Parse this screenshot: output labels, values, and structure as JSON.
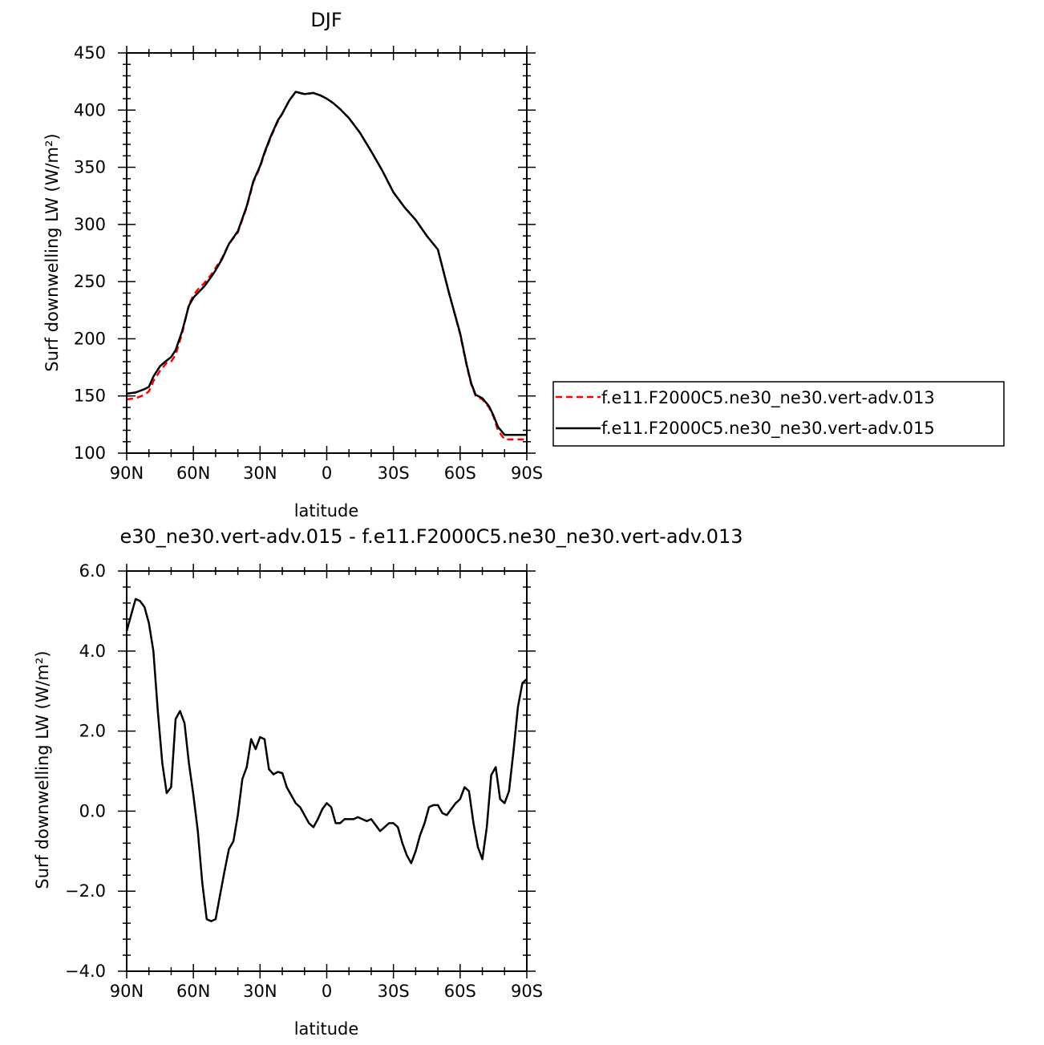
{
  "chart_data": [
    {
      "type": "line",
      "title": "DJF",
      "xlabel": "latitude",
      "ylabel": "Surf downwelling LW (W/m²)",
      "xlim": [
        -90,
        90
      ],
      "ylim": [
        100,
        450
      ],
      "x_ticks": [
        -90,
        -60,
        -30,
        0,
        30,
        60,
        90
      ],
      "x_tick_labels": [
        "90N",
        "60N",
        "30N",
        "0",
        "30S",
        "60S",
        "90S"
      ],
      "y_ticks": [
        100,
        150,
        200,
        250,
        300,
        350,
        400,
        450
      ],
      "y_tick_labels": [
        "100",
        "150",
        "200",
        "250",
        "300",
        "350",
        "400",
        "450"
      ],
      "legend_position": "right",
      "series": [
        {
          "name": "f.e11.F2000C5.ne30_ne30.vert-adv.013",
          "color": "#ff0000",
          "dash": "dashed",
          "x": [
            -90,
            -86,
            -82,
            -80,
            -78,
            -75,
            -72,
            -70,
            -68,
            -65,
            -62,
            -60,
            -58,
            -55,
            -52,
            -50,
            -47,
            -44,
            -40,
            -36,
            -33,
            -30,
            -28,
            -25,
            -22,
            -20,
            -17,
            -14,
            -10,
            -6,
            -3,
            0,
            3,
            6,
            10,
            15,
            20,
            25,
            30,
            35,
            40,
            45,
            50,
            55,
            60,
            63,
            65,
            67,
            70,
            73,
            75,
            77,
            80,
            82,
            84,
            86,
            88,
            90
          ],
          "y": [
            147,
            148,
            151,
            154,
            163,
            172,
            179,
            180,
            186,
            205,
            230,
            238,
            243,
            249,
            256,
            262,
            271,
            283,
            293,
            315,
            337,
            350,
            362,
            377,
            390,
            397,
            408,
            416,
            414,
            415,
            413,
            410,
            406,
            401,
            393,
            380,
            364,
            347,
            328,
            315,
            304,
            290,
            278,
            240,
            204,
            176,
            160,
            150,
            147,
            140,
            132,
            120,
            112,
            112,
            112,
            112,
            112,
            112
          ]
        },
        {
          "name": "f.e11.F2000C5.ne30_ne30.vert-adv.015",
          "color": "#000000",
          "dash": "solid",
          "x": [
            -90,
            -86,
            -82,
            -80,
            -78,
            -75,
            -72,
            -70,
            -68,
            -65,
            -62,
            -60,
            -58,
            -55,
            -52,
            -50,
            -47,
            -44,
            -40,
            -36,
            -33,
            -30,
            -28,
            -25,
            -22,
            -20,
            -17,
            -14,
            -10,
            -6,
            -3,
            0,
            3,
            6,
            10,
            15,
            20,
            25,
            30,
            35,
            40,
            45,
            50,
            55,
            60,
            63,
            65,
            67,
            70,
            73,
            75,
            77,
            80,
            82,
            84,
            86,
            88,
            90
          ],
          "y": [
            152,
            153,
            156,
            158,
            167,
            176,
            181,
            184,
            190,
            207,
            229,
            236,
            240,
            246,
            254,
            260,
            270,
            283,
            294,
            316,
            338,
            351,
            363,
            378,
            391,
            397,
            408,
            416,
            414,
            415,
            413,
            410,
            406,
            401,
            393,
            380,
            364,
            347,
            328,
            315,
            304,
            290,
            278,
            240,
            205,
            177,
            161,
            151,
            148,
            141,
            133,
            123,
            116,
            116,
            116,
            116,
            116,
            116
          ]
        }
      ]
    },
    {
      "type": "line",
      "title": "e30_ne30.vert-adv.015 - f.e11.F2000C5.ne30_ne30.vert-adv.013",
      "xlabel": "latitude",
      "ylabel": "Surf downwelling LW (W/m²)",
      "xlim": [
        -90,
        90
      ],
      "ylim": [
        -4,
        6
      ],
      "x_ticks": [
        -90,
        -60,
        -30,
        0,
        30,
        60,
        90
      ],
      "x_tick_labels": [
        "90N",
        "60N",
        "30N",
        "0",
        "30S",
        "60S",
        "90S"
      ],
      "y_ticks": [
        -4,
        -2,
        0,
        2,
        4,
        6
      ],
      "y_tick_labels": [
        "−4.0",
        "−2.0",
        "0.0",
        "2.0",
        "4.0",
        "6.0"
      ],
      "series": [
        {
          "color": "#000000",
          "dash": "solid",
          "x": [
            -90,
            -88,
            -86,
            -84,
            -82,
            -80,
            -78,
            -76,
            -74,
            -72,
            -70,
            -68,
            -66,
            -64,
            -62,
            -60,
            -58,
            -56,
            -54,
            -52,
            -50,
            -48,
            -46,
            -44,
            -42,
            -40,
            -38,
            -36,
            -34,
            -32,
            -30,
            -28,
            -26,
            -24,
            -22,
            -20,
            -18,
            -16,
            -14,
            -12,
            -10,
            -8,
            -6,
            -4,
            -2,
            0,
            2,
            4,
            6,
            8,
            10,
            12,
            14,
            16,
            18,
            20,
            22,
            24,
            26,
            28,
            30,
            32,
            34,
            36,
            38,
            40,
            42,
            44,
            46,
            48,
            50,
            52,
            54,
            56,
            58,
            60,
            62,
            64,
            66,
            68,
            70,
            72,
            74,
            76,
            78,
            80,
            82,
            84,
            86,
            88,
            90
          ],
          "y": [
            4.5,
            4.9,
            5.3,
            5.25,
            5.1,
            4.7,
            4.0,
            2.5,
            1.2,
            0.45,
            0.6,
            2.3,
            2.5,
            2.2,
            1.2,
            0.4,
            -0.5,
            -1.8,
            -2.7,
            -2.75,
            -2.7,
            -2.1,
            -1.5,
            -0.95,
            -0.75,
            -0.1,
            0.8,
            1.1,
            1.8,
            1.55,
            1.85,
            1.8,
            1.05,
            0.92,
            0.98,
            0.95,
            0.6,
            0.4,
            0.2,
            0.1,
            -0.1,
            -0.3,
            -0.4,
            -0.2,
            0.05,
            0.2,
            0.1,
            -0.3,
            -0.3,
            -0.2,
            -0.2,
            -0.2,
            -0.15,
            -0.2,
            -0.25,
            -0.2,
            -0.35,
            -0.5,
            -0.4,
            -0.3,
            -0.3,
            -0.4,
            -0.8,
            -1.1,
            -1.3,
            -1.0,
            -0.6,
            -0.3,
            0.1,
            0.15,
            0.15,
            -0.05,
            -0.1,
            0.05,
            0.2,
            0.3,
            0.6,
            0.5,
            -0.3,
            -0.9,
            -1.2,
            -0.4,
            0.9,
            1.1,
            0.3,
            0.2,
            0.5,
            1.5,
            2.6,
            3.2,
            3.3
          ]
        }
      ]
    }
  ]
}
